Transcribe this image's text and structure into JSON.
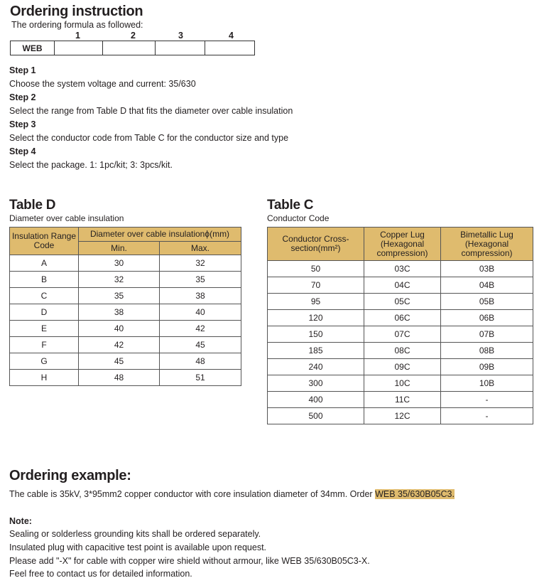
{
  "title": "Ordering instruction",
  "formula_intro": "The ordering formula as followed:",
  "formula": {
    "numbers": [
      "1",
      "2",
      "3",
      "4"
    ],
    "prefix": "WEB"
  },
  "steps": [
    {
      "label": "Step 1",
      "text": "Choose the system voltage and current: 35/630"
    },
    {
      "label": "Step 2",
      "text": "Select the range from Table D that fits the diameter over cable insulation"
    },
    {
      "label": "Step 3",
      "text": "Select the conductor code from Table C for the conductor size and type"
    },
    {
      "label": "Step 4",
      "text": "Select the package. 1: 1pc/kit; 3: 3pcs/kit."
    }
  ],
  "table_d": {
    "title": "Table D",
    "subtitle": "Diameter over cable insulation",
    "headers": {
      "code": "Insulation Range Code",
      "diameter": "Diameter over cable insulationϕ(mm)",
      "min": "Min.",
      "max": "Max."
    },
    "rows": [
      [
        "A",
        "30",
        "32"
      ],
      [
        "B",
        "32",
        "35"
      ],
      [
        "C",
        "35",
        "38"
      ],
      [
        "D",
        "38",
        "40"
      ],
      [
        "E",
        "40",
        "42"
      ],
      [
        "F",
        "42",
        "45"
      ],
      [
        "G",
        "45",
        "48"
      ],
      [
        "H",
        "48",
        "51"
      ]
    ]
  },
  "table_c": {
    "title": "Table C",
    "subtitle": "Conductor Code",
    "headers": {
      "cross": "Conductor Cross-section(mm²)",
      "copper": "Copper Lug (Hexagonal compression)",
      "bimetallic": "Bimetallic Lug (Hexagonal compression)"
    },
    "rows": [
      [
        "50",
        "03C",
        "03B"
      ],
      [
        "70",
        "04C",
        "04B"
      ],
      [
        "95",
        "05C",
        "05B"
      ],
      [
        "120",
        "06C",
        "06B"
      ],
      [
        "150",
        "07C",
        "07B"
      ],
      [
        "185",
        "08C",
        "08B"
      ],
      [
        "240",
        "09C",
        "09B"
      ],
      [
        "300",
        "10C",
        "10B"
      ],
      [
        "400",
        "11C",
        "-"
      ],
      [
        "500",
        "12C",
        "-"
      ]
    ]
  },
  "example": {
    "title": "Ordering example:",
    "text": "The cable is 35kV, 3*95mm2 copper conductor with core insulation diameter of 34mm. Order ",
    "code": "WEB 35/630B05C3. "
  },
  "note": {
    "title": "Note:",
    "lines": [
      "Sealing or solderless grounding kits shall be ordered separately.",
      "Insulated plug with capacitive test point is available upon request.",
      "Please add \"-X\" for cable with copper wire shield without armour, like WEB 35/630B05C3-X.",
      "Feel free to contact us for detailed information."
    ]
  },
  "colors": {
    "header_bg": "#dfbb6e",
    "highlight": "#dfbb6e"
  }
}
